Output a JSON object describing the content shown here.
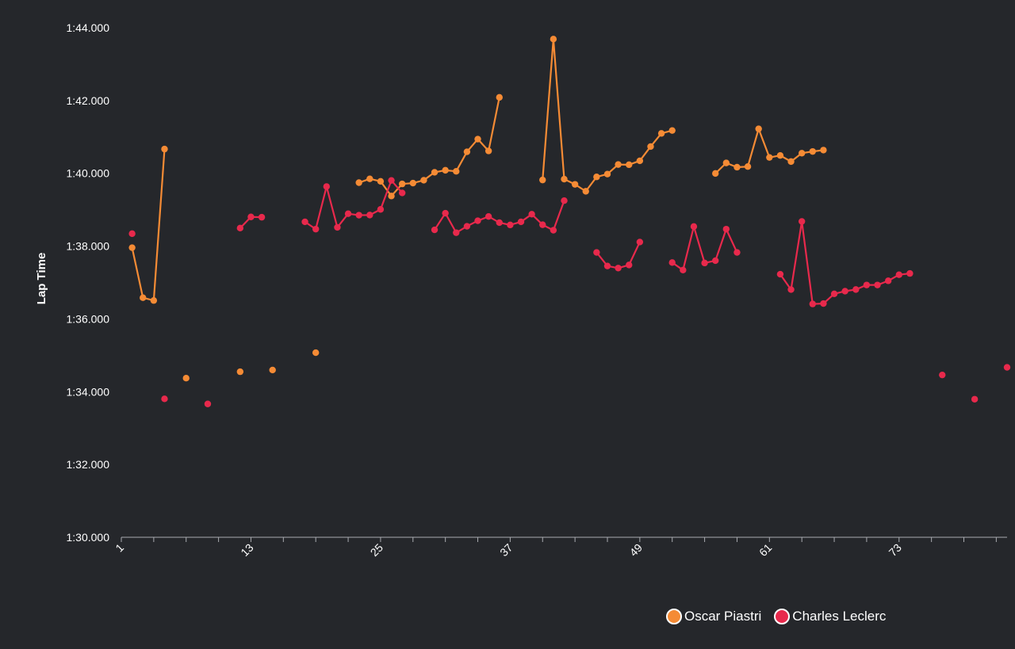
{
  "chart_data": {
    "type": "line",
    "title": "",
    "xlabel": "",
    "ylabel": "Lap Time",
    "xlim": [
      1,
      83
    ],
    "ylim": [
      5400,
      6240
    ],
    "x_ticks": [
      {
        "value": 1,
        "label": "1"
      },
      {
        "value": 13,
        "label": "13"
      },
      {
        "value": 25,
        "label": "25"
      },
      {
        "value": 37,
        "label": "37"
      },
      {
        "value": 49,
        "label": "49"
      },
      {
        "value": 61,
        "label": "61"
      },
      {
        "value": 73,
        "label": "73"
      }
    ],
    "y_ticks": [
      {
        "value": 5400,
        "label": "1:30.000"
      },
      {
        "value": 5520,
        "label": "1:32.000"
      },
      {
        "value": 5640,
        "label": "1:34.000"
      },
      {
        "value": 5760,
        "label": "1:36.000"
      },
      {
        "value": 5880,
        "label": "1:38.000"
      },
      {
        "value": 6000,
        "label": "1:40.000"
      },
      {
        "value": 6120,
        "label": "1:42.000"
      },
      {
        "value": 6240,
        "label": "1:44.000"
      }
    ],
    "grid": false,
    "legend_position": "bottom-right",
    "series": [
      {
        "name": "Oscar Piastri",
        "color": "#f58b35",
        "segments": [
          [
            [
              2,
              5877.4
            ],
            [
              3,
              5794.9
            ],
            [
              4,
              5790.3
            ],
            [
              5,
              6040.0
            ]
          ],
          [
            [
              7,
              5662.3
            ]
          ],
          [
            [
              12,
              5672.9
            ]
          ],
          [
            [
              15,
              5675.7
            ]
          ],
          [
            [
              19,
              5704.3
            ]
          ],
          [
            [
              23,
              5984.6
            ],
            [
              24,
              5990.9
            ],
            [
              25,
              5986.8
            ],
            [
              26,
              5962.6
            ],
            [
              27,
              5982.5
            ],
            [
              28,
              5983.9
            ],
            [
              29,
              5988.6
            ],
            [
              30,
              6001.7
            ],
            [
              31,
              6005.0
            ],
            [
              32,
              6003.3
            ],
            [
              33,
              6035.5
            ],
            [
              34,
              6056.4
            ],
            [
              35,
              6036.9
            ],
            [
              36,
              6125.2
            ]
          ],
          [
            [
              40,
              5989.0
            ],
            [
              41,
              6221.3
            ],
            [
              42,
              5990.4
            ],
            [
              43,
              5981.8
            ],
            [
              44,
              5970.4
            ],
            [
              45,
              5994.1
            ],
            [
              46,
              5998.7
            ],
            [
              47,
              6014.5
            ],
            [
              48,
              6014.2
            ],
            [
              49,
              6020.6
            ],
            [
              50,
              6044.1
            ],
            [
              51,
              6065.8
            ],
            [
              52,
              6070.6
            ]
          ],
          [
            [
              56,
              5999.8
            ],
            [
              57,
              6017.1
            ],
            [
              58,
              6010.1
            ],
            [
              59,
              6011.1
            ],
            [
              60,
              6073.3
            ],
            [
              61,
              6026.2
            ],
            [
              62,
              6029.4
            ],
            [
              63,
              6019.4
            ],
            [
              64,
              6033.2
            ],
            [
              65,
              6036.0
            ],
            [
              66,
              6038.3
            ]
          ]
        ]
      },
      {
        "name": "Charles Leclerc",
        "color": "#e8294c",
        "segments": [
          [
            [
              2,
              5900.5
            ]
          ],
          [
            [
              5,
              5628.2
            ]
          ],
          [
            [
              9,
              5619.8
            ]
          ],
          [
            [
              12,
              5909.7
            ],
            [
              13,
              5928.1
            ],
            [
              14,
              5927.6
            ]
          ],
          [
            [
              18,
              5920.0
            ],
            [
              19,
              5908.0
            ],
            [
              20,
              5978.2
            ],
            [
              21,
              5910.9
            ],
            [
              22,
              5933.4
            ],
            [
              23,
              5931.0
            ],
            [
              24,
              5931.2
            ],
            [
              25,
              5940.5
            ],
            [
              26,
              5988.3
            ],
            [
              27,
              5967.7
            ]
          ],
          [
            [
              30,
              5906.8
            ],
            [
              31,
              5934.2
            ],
            [
              32,
              5902.1
            ],
            [
              33,
              5912.7
            ],
            [
              34,
              5921.8
            ],
            [
              35,
              5928.8
            ],
            [
              36,
              5918.7
            ],
            [
              37,
              5914.9
            ],
            [
              38,
              5920.0
            ],
            [
              39,
              5932.6
            ],
            [
              40,
              5915.2
            ],
            [
              41,
              5906.1
            ],
            [
              42,
              5955.0
            ]
          ],
          [
            [
              45,
              5869.6
            ],
            [
              46,
              5847.2
            ],
            [
              47,
              5843.8
            ],
            [
              48,
              5848.9
            ],
            [
              49,
              5886.7
            ]
          ],
          [
            [
              52,
              5852.9
            ],
            [
              53,
              5840.5
            ],
            [
              54,
              5912.3
            ],
            [
              55,
              5852.2
            ],
            [
              56,
              5856.0
            ],
            [
              57,
              5908.0
            ],
            [
              58,
              5869.6
            ]
          ],
          [
            [
              62,
              5833.6
            ],
            [
              63,
              5808.3
            ],
            [
              64,
              5920.7
            ],
            [
              65,
              5784.6
            ],
            [
              66,
              5785.3
            ],
            [
              67,
              5801.3
            ],
            [
              68,
              5805.7
            ],
            [
              69,
              5808.4
            ],
            [
              70,
              5815.9
            ],
            [
              71,
              5815.9
            ],
            [
              72,
              5822.8
            ],
            [
              73,
              5832.8
            ],
            [
              74,
              5834.9
            ]
          ],
          [
            [
              77,
              5667.6
            ]
          ],
          [
            [
              80,
              5627.6
            ]
          ],
          [
            [
              83,
              5680.1
            ]
          ]
        ]
      }
    ]
  }
}
